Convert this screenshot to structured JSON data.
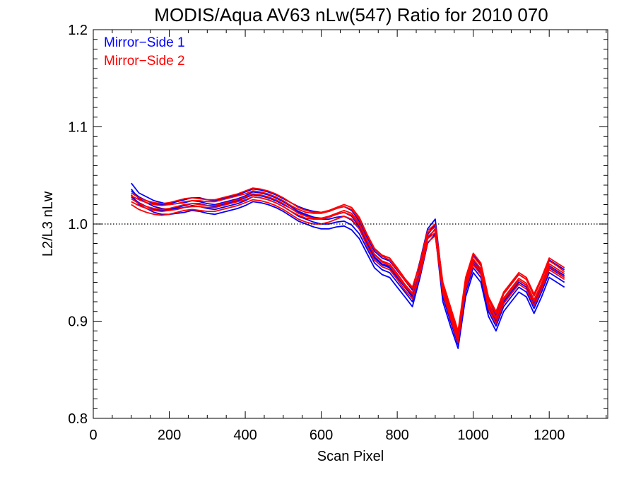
{
  "chart_data": {
    "type": "line",
    "title": "MODIS/Aqua AV63 nLw(547) Ratio for 2010 070",
    "xlabel": "Scan Pixel",
    "ylabel": "L2/L3 nLw",
    "xlim": [
      0,
      1354
    ],
    "ylim": [
      0.8,
      1.2
    ],
    "x_ticks": [
      0,
      200,
      400,
      600,
      800,
      1000,
      1200
    ],
    "x_tick_labels": [
      "0",
      "200",
      "400",
      "600",
      "800",
      "1000",
      "1200"
    ],
    "y_ticks": [
      0.8,
      0.9,
      1.0,
      1.1,
      1.2
    ],
    "y_tick_labels": [
      "0.8",
      "0.9",
      "1.0",
      "1.1",
      "1.2"
    ],
    "reference_line": {
      "y": 1.0,
      "style": "dotted"
    },
    "grid": false,
    "legend_position": "top-left",
    "legend": [
      {
        "label": "Mirror−Side 1",
        "color": "#0000ff"
      },
      {
        "label": "Mirror−Side 2",
        "color": "#ff0000"
      }
    ],
    "x": [
      100,
      120,
      140,
      160,
      180,
      200,
      220,
      240,
      260,
      280,
      300,
      320,
      340,
      360,
      380,
      400,
      420,
      440,
      460,
      480,
      500,
      520,
      540,
      560,
      580,
      600,
      620,
      640,
      660,
      680,
      700,
      720,
      740,
      760,
      780,
      800,
      820,
      840,
      860,
      880,
      900,
      920,
      940,
      960,
      980,
      1000,
      1020,
      1040,
      1060,
      1080,
      1100,
      1120,
      1140,
      1160,
      1180,
      1200,
      1220,
      1240
    ],
    "series": [
      {
        "group": 1,
        "color": "#0000ff",
        "values": [
          1.042,
          1.032,
          1.028,
          1.024,
          1.022,
          1.02,
          1.021,
          1.022,
          1.024,
          1.023,
          1.021,
          1.02,
          1.022,
          1.024,
          1.026,
          1.029,
          1.033,
          1.032,
          1.03,
          1.027,
          1.023,
          1.018,
          1.013,
          1.01,
          1.007,
          1.005,
          1.005,
          1.007,
          1.008,
          1.004,
          0.995,
          0.98,
          0.965,
          0.958,
          0.955,
          0.945,
          0.935,
          0.925,
          0.955,
          0.99,
          1.0,
          0.93,
          0.905,
          0.88,
          0.935,
          0.96,
          0.95,
          0.915,
          0.898,
          0.92,
          0.93,
          0.94,
          0.935,
          0.918,
          0.935,
          0.955,
          0.95,
          0.945
        ]
      },
      {
        "group": 1,
        "color": "#0000ff",
        "values": [
          1.036,
          1.026,
          1.022,
          1.018,
          1.016,
          1.015,
          1.016,
          1.017,
          1.019,
          1.018,
          1.016,
          1.015,
          1.017,
          1.019,
          1.021,
          1.024,
          1.028,
          1.027,
          1.025,
          1.022,
          1.018,
          1.013,
          1.008,
          1.005,
          1.002,
          1.0,
          1.0,
          1.002,
          1.003,
          0.999,
          0.99,
          0.975,
          0.96,
          0.953,
          0.95,
          0.94,
          0.93,
          0.92,
          0.95,
          0.985,
          0.995,
          0.925,
          0.9,
          0.876,
          0.93,
          0.955,
          0.945,
          0.91,
          0.895,
          0.915,
          0.925,
          0.935,
          0.93,
          0.913,
          0.93,
          0.95,
          0.945,
          0.94
        ]
      },
      {
        "group": 1,
        "color": "#0000ff",
        "values": [
          1.03,
          1.02,
          1.016,
          1.012,
          1.01,
          1.01,
          1.011,
          1.012,
          1.014,
          1.013,
          1.011,
          1.01,
          1.012,
          1.014,
          1.016,
          1.019,
          1.023,
          1.022,
          1.02,
          1.017,
          1.013,
          1.008,
          1.003,
          1.0,
          0.997,
          0.995,
          0.995,
          0.997,
          0.998,
          0.994,
          0.985,
          0.97,
          0.955,
          0.948,
          0.945,
          0.935,
          0.925,
          0.915,
          0.945,
          0.98,
          0.99,
          0.92,
          0.895,
          0.872,
          0.925,
          0.95,
          0.94,
          0.905,
          0.89,
          0.91,
          0.92,
          0.93,
          0.925,
          0.908,
          0.925,
          0.945,
          0.94,
          0.935
        ]
      },
      {
        "group": 1,
        "color": "#0000ff",
        "values": [
          1.034,
          1.028,
          1.024,
          1.021,
          1.02,
          1.021,
          1.023,
          1.025,
          1.027,
          1.027,
          1.025,
          1.024,
          1.026,
          1.028,
          1.03,
          1.033,
          1.036,
          1.035,
          1.033,
          1.03,
          1.026,
          1.022,
          1.018,
          1.015,
          1.013,
          1.012,
          1.013,
          1.016,
          1.018,
          1.014,
          1.003,
          0.987,
          0.972,
          0.965,
          0.962,
          0.952,
          0.942,
          0.932,
          0.962,
          0.995,
          1.005,
          0.937,
          0.912,
          0.887,
          0.942,
          0.968,
          0.958,
          0.923,
          0.906,
          0.928,
          0.938,
          0.948,
          0.943,
          0.926,
          0.943,
          0.963,
          0.958,
          0.953
        ]
      },
      {
        "group": 1,
        "color": "#0000ff",
        "values": [
          1.028,
          1.022,
          1.018,
          1.015,
          1.014,
          1.015,
          1.017,
          1.019,
          1.021,
          1.021,
          1.019,
          1.018,
          1.02,
          1.022,
          1.024,
          1.027,
          1.03,
          1.029,
          1.027,
          1.024,
          1.02,
          1.016,
          1.012,
          1.009,
          1.007,
          1.006,
          1.007,
          1.01,
          1.012,
          1.008,
          0.997,
          0.981,
          0.966,
          0.959,
          0.956,
          0.946,
          0.936,
          0.926,
          0.956,
          0.989,
          0.999,
          0.931,
          0.906,
          0.881,
          0.936,
          0.962,
          0.952,
          0.917,
          0.9,
          0.922,
          0.932,
          0.942,
          0.937,
          0.92,
          0.937,
          0.957,
          0.952,
          0.947
        ]
      },
      {
        "group": 2,
        "color": "#ff0000",
        "values": [
          1.032,
          1.027,
          1.024,
          1.022,
          1.021,
          1.022,
          1.024,
          1.026,
          1.027,
          1.026,
          1.025,
          1.025,
          1.027,
          1.029,
          1.031,
          1.034,
          1.037,
          1.036,
          1.034,
          1.031,
          1.027,
          1.022,
          1.017,
          1.014,
          1.012,
          1.012,
          1.014,
          1.017,
          1.02,
          1.017,
          1.007,
          0.99,
          0.975,
          0.968,
          0.965,
          0.955,
          0.944,
          0.935,
          0.96,
          0.993,
          1.0,
          0.94,
          0.915,
          0.89,
          0.945,
          0.97,
          0.96,
          0.925,
          0.91,
          0.93,
          0.94,
          0.95,
          0.945,
          0.928,
          0.945,
          0.965,
          0.96,
          0.955
        ]
      },
      {
        "group": 2,
        "color": "#ff0000",
        "values": [
          1.026,
          1.021,
          1.018,
          1.016,
          1.015,
          1.016,
          1.018,
          1.02,
          1.021,
          1.02,
          1.019,
          1.019,
          1.021,
          1.023,
          1.025,
          1.028,
          1.031,
          1.03,
          1.028,
          1.025,
          1.021,
          1.016,
          1.011,
          1.008,
          1.006,
          1.006,
          1.008,
          1.011,
          1.014,
          1.011,
          1.001,
          0.984,
          0.969,
          0.962,
          0.959,
          0.949,
          0.938,
          0.929,
          0.954,
          0.987,
          0.994,
          0.934,
          0.909,
          0.884,
          0.939,
          0.964,
          0.954,
          0.919,
          0.904,
          0.924,
          0.934,
          0.944,
          0.939,
          0.922,
          0.939,
          0.959,
          0.954,
          0.949
        ]
      },
      {
        "group": 2,
        "color": "#ff0000",
        "values": [
          1.02,
          1.015,
          1.012,
          1.01,
          1.009,
          1.01,
          1.012,
          1.014,
          1.015,
          1.014,
          1.013,
          1.013,
          1.015,
          1.017,
          1.019,
          1.022,
          1.025,
          1.024,
          1.022,
          1.019,
          1.015,
          1.01,
          1.005,
          1.002,
          1.0,
          1.0,
          1.002,
          1.005,
          1.008,
          1.005,
          0.995,
          0.978,
          0.963,
          0.956,
          0.953,
          0.943,
          0.932,
          0.923,
          0.948,
          0.981,
          0.988,
          0.928,
          0.903,
          0.878,
          0.933,
          0.958,
          0.948,
          0.913,
          0.898,
          0.918,
          0.928,
          0.938,
          0.933,
          0.916,
          0.933,
          0.953,
          0.948,
          0.943
        ]
      },
      {
        "group": 2,
        "color": "#ff0000",
        "values": [
          1.029,
          1.025,
          1.022,
          1.02,
          1.019,
          1.02,
          1.021,
          1.023,
          1.024,
          1.024,
          1.023,
          1.023,
          1.025,
          1.027,
          1.029,
          1.031,
          1.034,
          1.033,
          1.031,
          1.028,
          1.024,
          1.019,
          1.015,
          1.012,
          1.011,
          1.011,
          1.013,
          1.016,
          1.018,
          1.015,
          1.005,
          0.989,
          0.974,
          0.967,
          0.963,
          0.953,
          0.942,
          0.934,
          0.96,
          0.991,
          0.997,
          0.937,
          0.912,
          0.888,
          0.942,
          0.967,
          0.957,
          0.922,
          0.908,
          0.928,
          0.938,
          0.948,
          0.943,
          0.926,
          0.943,
          0.962,
          0.957,
          0.951
        ]
      },
      {
        "group": 2,
        "color": "#ff0000",
        "values": [
          1.023,
          1.019,
          1.016,
          1.014,
          1.013,
          1.014,
          1.015,
          1.017,
          1.018,
          1.018,
          1.017,
          1.017,
          1.019,
          1.021,
          1.023,
          1.025,
          1.028,
          1.027,
          1.025,
          1.022,
          1.018,
          1.013,
          1.009,
          1.006,
          1.005,
          1.005,
          1.007,
          1.01,
          1.012,
          1.009,
          0.999,
          0.983,
          0.968,
          0.961,
          0.957,
          0.947,
          0.936,
          0.928,
          0.954,
          0.985,
          0.991,
          0.931,
          0.906,
          0.882,
          0.936,
          0.961,
          0.951,
          0.916,
          0.902,
          0.922,
          0.932,
          0.942,
          0.937,
          0.92,
          0.937,
          0.956,
          0.951,
          0.945
        ]
      }
    ]
  }
}
